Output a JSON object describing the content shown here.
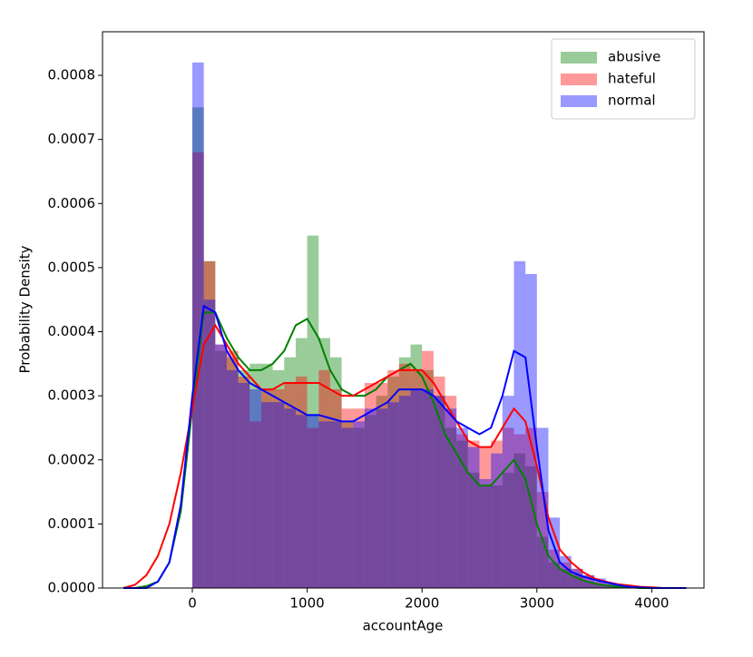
{
  "chart_data": {
    "type": "histogram",
    "xlabel": "accountAge",
    "ylabel": "Probability Density",
    "xlim": [
      -782,
      4455
    ],
    "ylim": [
      0,
      0.000868
    ],
    "xticks": [
      0,
      1000,
      2000,
      3000,
      4000
    ],
    "yticks": [
      {
        "value": 0,
        "label": "0.0000"
      },
      {
        "value": 0.0001,
        "label": "0.0001"
      },
      {
        "value": 0.0002,
        "label": "0.0002"
      },
      {
        "value": 0.0003,
        "label": "0.0003"
      },
      {
        "value": 0.0004,
        "label": "0.0004"
      },
      {
        "value": 0.0005,
        "label": "0.0005"
      },
      {
        "value": 0.0006,
        "label": "0.0006"
      },
      {
        "value": 0.0007,
        "label": "0.0007"
      },
      {
        "value": 0.0008,
        "label": "0.0008"
      }
    ],
    "legend": "upper right",
    "bins": [
      0,
      100,
      200,
      300,
      400,
      500,
      600,
      700,
      800,
      900,
      1000,
      1100,
      1200,
      1300,
      1400,
      1500,
      1600,
      1700,
      1800,
      1900,
      2000,
      2100,
      2200,
      2300,
      2400,
      2500,
      2600,
      2700,
      2800,
      2900,
      3000,
      3100,
      3200,
      3300,
      3400,
      3500,
      3600,
      3700,
      3800
    ],
    "kde_x": [
      -600,
      -500,
      -400,
      -300,
      -200,
      -100,
      0,
      100,
      200,
      300,
      400,
      500,
      600,
      700,
      800,
      900,
      1000,
      1100,
      1200,
      1300,
      1400,
      1500,
      1600,
      1700,
      1800,
      1900,
      2000,
      2100,
      2200,
      2300,
      2400,
      2500,
      2600,
      2700,
      2800,
      2900,
      3000,
      3100,
      3200,
      3300,
      3400,
      3500,
      3600,
      3700,
      3800,
      3900,
      4000,
      4100,
      4200,
      4300
    ],
    "series": [
      {
        "name": "abusive",
        "color": "#008000",
        "values": [
          0.00075,
          0.00051,
          0.00037,
          0.00036,
          0.00034,
          0.00035,
          0.00035,
          0.00034,
          0.00036,
          0.00039,
          0.00055,
          0.00039,
          0.00036,
          0.00026,
          0.00025,
          0.00027,
          0.0003,
          0.00033,
          0.00036,
          0.00038,
          0.00034,
          0.0003,
          0.00025,
          0.00023,
          0.00018,
          0.00016,
          0.00016,
          0.00018,
          0.00021,
          0.00019,
          8e-05,
          4e-05,
          3e-05,
          2e-05,
          1e-05,
          5e-06,
          3e-06,
          0
        ],
        "kde": [
          0,
          0,
          3e-06,
          1e-05,
          4e-05,
          0.00012,
          0.00028,
          0.00043,
          0.00043,
          0.00039,
          0.00036,
          0.00034,
          0.00034,
          0.00035,
          0.00037,
          0.00041,
          0.00042,
          0.00039,
          0.00034,
          0.00031,
          0.0003,
          0.0003,
          0.00031,
          0.00033,
          0.00034,
          0.00035,
          0.00033,
          0.00029,
          0.00024,
          0.00021,
          0.00018,
          0.00016,
          0.00016,
          0.00018,
          0.0002,
          0.00017,
          0.0001,
          5e-05,
          3e-05,
          2e-05,
          1.2e-05,
          7e-06,
          4e-06,
          2e-06,
          1e-06,
          0,
          0,
          0,
          0,
          0
        ]
      },
      {
        "name": "hateful",
        "color": "#ff0000",
        "values": [
          0.00068,
          0.00051,
          0.00038,
          0.00037,
          0.00033,
          0.00026,
          0.00031,
          0.00031,
          0.00032,
          0.00033,
          0.00025,
          0.00034,
          0.00031,
          0.00028,
          0.00028,
          0.00032,
          0.00032,
          0.00034,
          0.00035,
          0.00034,
          0.00037,
          0.00033,
          0.0003,
          0.00024,
          0.00023,
          0.00022,
          0.00023,
          0.00025,
          0.00024,
          0.00025,
          0.00015,
          6e-05,
          4e-05,
          3e-05,
          2e-05,
          1e-05,
          6e-06,
          3e-06
        ],
        "kde": [
          0,
          5e-06,
          2e-05,
          5e-05,
          0.0001,
          0.00018,
          0.00028,
          0.00038,
          0.00041,
          0.00038,
          0.00035,
          0.00033,
          0.00031,
          0.00031,
          0.00032,
          0.00032,
          0.00032,
          0.00032,
          0.00031,
          0.0003,
          0.0003,
          0.00031,
          0.00032,
          0.00033,
          0.00034,
          0.00034,
          0.00034,
          0.00032,
          0.00029,
          0.00026,
          0.00023,
          0.00022,
          0.00022,
          0.00025,
          0.00028,
          0.00026,
          0.00019,
          0.00011,
          6e-05,
          4e-05,
          2.5e-05,
          1.5e-05,
          1e-05,
          6e-06,
          4e-06,
          2e-06,
          1e-06,
          0,
          0,
          0
        ]
      },
      {
        "name": "normal",
        "color": "#0000ff",
        "values": [
          0.00082,
          0.00045,
          0.00038,
          0.00034,
          0.00032,
          0.00031,
          0.00029,
          0.00029,
          0.00028,
          0.00027,
          0.00027,
          0.00026,
          0.00026,
          0.00025,
          0.00026,
          0.00028,
          0.00028,
          0.00029,
          0.0003,
          0.00031,
          0.00031,
          0.0003,
          0.00028,
          0.00025,
          0.00022,
          0.00017,
          0.00021,
          0.0003,
          0.00051,
          0.00049,
          0.00025,
          0.00011,
          5e-05,
          3e-05,
          2e-05,
          1.5e-05,
          8e-06,
          3e-06
        ],
        "kde": [
          0,
          0,
          0,
          1e-05,
          4e-05,
          0.00013,
          0.0003,
          0.00044,
          0.00043,
          0.00037,
          0.00034,
          0.00032,
          0.00031,
          0.0003,
          0.00029,
          0.00028,
          0.00027,
          0.00027,
          0.000265,
          0.00026,
          0.00026,
          0.00027,
          0.00028,
          0.00029,
          0.00031,
          0.00031,
          0.00031,
          0.0003,
          0.00028,
          0.00026,
          0.00025,
          0.00024,
          0.00025,
          0.0003,
          0.00037,
          0.00036,
          0.00022,
          9e-05,
          4e-05,
          2.5e-05,
          1.8e-05,
          1.3e-05,
          9e-06,
          5e-06,
          2e-06,
          1e-06,
          0,
          0,
          0,
          0
        ]
      }
    ]
  }
}
